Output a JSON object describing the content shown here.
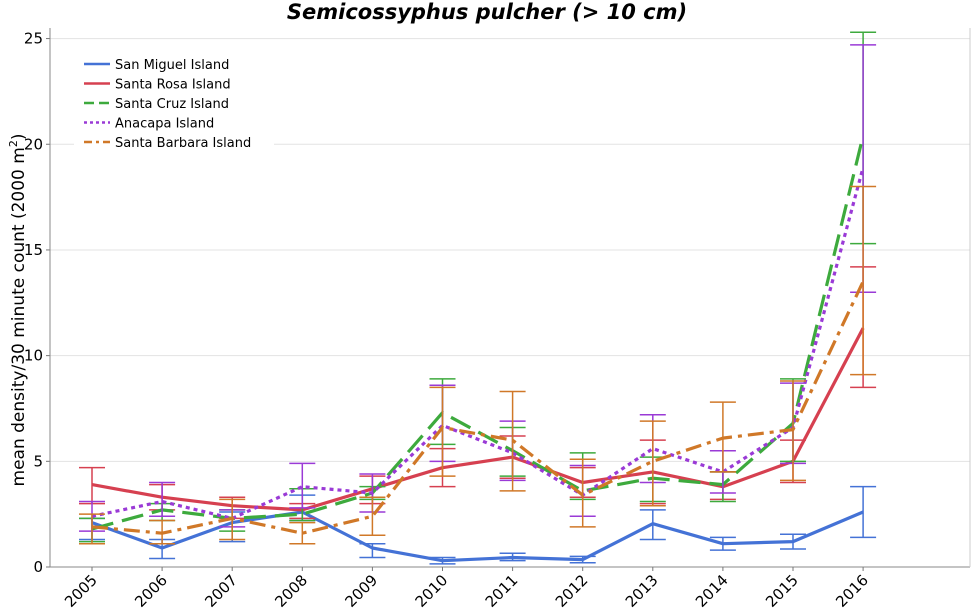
{
  "chart_data": {
    "type": "line",
    "title": "Semicossyphus pulcher (> 10 cm)",
    "ylabel": "mean density/30 minute count (2000 m²)",
    "xlabel": "",
    "x": [
      "2005",
      "2006",
      "2007",
      "2008",
      "2009",
      "2010",
      "2011",
      "2012",
      "2013",
      "2014",
      "2015",
      "2016"
    ],
    "ylim": [
      0,
      25.5
    ],
    "yticks": [
      0,
      5,
      10,
      15,
      20,
      25
    ],
    "grid": true,
    "legend_position": "top-left",
    "series": [
      {
        "name": "San Miguel Island",
        "color": "#4472d6",
        "dash": "solid",
        "values": [
          2.1,
          0.9,
          2.1,
          2.6,
          0.9,
          0.3,
          0.45,
          0.35,
          2.05,
          1.1,
          1.2,
          2.6
        ],
        "err_low": [
          1.3,
          0.4,
          1.2,
          2.2,
          0.45,
          0.15,
          0.3,
          0.2,
          1.3,
          0.8,
          0.85,
          1.4
        ],
        "err_high": [
          2.3,
          1.3,
          2.6,
          3.4,
          1.1,
          0.45,
          0.65,
          0.5,
          2.7,
          1.4,
          1.55,
          3.8
        ]
      },
      {
        "name": "Santa Rosa Island",
        "color": "#d64050",
        "dash": "solid",
        "values": [
          3.9,
          3.3,
          2.9,
          2.7,
          3.7,
          4.7,
          5.2,
          4.0,
          4.5,
          3.8,
          5.0,
          11.3
        ],
        "err_low": [
          3.0,
          2.7,
          2.3,
          2.3,
          3.0,
          3.8,
          4.2,
          3.3,
          3.0,
          3.2,
          4.0,
          8.5
        ],
        "err_high": [
          4.7,
          3.9,
          3.3,
          3.0,
          4.3,
          5.6,
          6.2,
          4.7,
          6.0,
          4.5,
          6.0,
          14.2
        ]
      },
      {
        "name": "Santa Cruz Island",
        "color": "#3daa3d",
        "dash": "longdash",
        "values": [
          1.8,
          2.7,
          2.3,
          2.5,
          3.5,
          7.3,
          5.5,
          3.6,
          4.2,
          3.9,
          6.8,
          20.4
        ],
        "err_low": [
          1.2,
          2.2,
          1.7,
          2.2,
          3.2,
          5.8,
          4.3,
          3.2,
          3.1,
          3.1,
          5.0,
          15.3
        ],
        "err_high": [
          2.3,
          3.0,
          2.7,
          3.7,
          3.8,
          8.9,
          6.6,
          5.4,
          5.2,
          4.5,
          8.9,
          25.3
        ]
      },
      {
        "name": "Anacapa Island",
        "color": "#9a3ad6",
        "dash": "dotted",
        "values": [
          2.4,
          3.1,
          2.3,
          3.8,
          3.5,
          6.7,
          5.4,
          3.4,
          5.6,
          4.5,
          6.6,
          18.9
        ],
        "err_low": [
          1.7,
          2.4,
          1.9,
          2.8,
          2.6,
          5.0,
          4.1,
          2.4,
          4.0,
          3.5,
          4.9,
          13.0
        ],
        "err_high": [
          3.1,
          4.0,
          2.7,
          4.9,
          4.4,
          8.6,
          6.9,
          4.8,
          7.2,
          5.5,
          8.7,
          24.7
        ]
      },
      {
        "name": "Santa Barbara Island",
        "color": "#d07828",
        "dash": "dashdot",
        "values": [
          1.9,
          1.6,
          2.3,
          1.6,
          2.4,
          6.6,
          6.0,
          3.4,
          5.0,
          6.1,
          6.5,
          13.5
        ],
        "err_low": [
          1.1,
          1.1,
          1.3,
          1.1,
          1.5,
          4.3,
          3.6,
          1.9,
          2.9,
          4.5,
          4.1,
          9.1
        ],
        "err_high": [
          2.5,
          2.2,
          3.2,
          2.1,
          3.3,
          8.5,
          8.3,
          5.1,
          6.9,
          7.8,
          8.8,
          18.0
        ]
      }
    ]
  }
}
